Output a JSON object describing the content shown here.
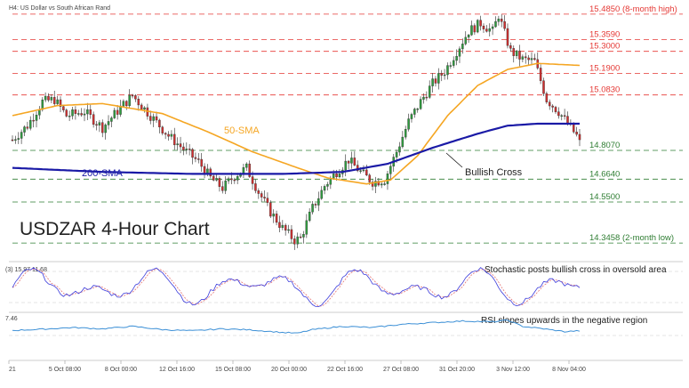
{
  "chart_data": {
    "type": "candlestick",
    "instrument_label": "H4: US Dollar vs South African Rand",
    "title": "USDZAR 4-Hour Chart",
    "ylim": [
      14.28,
      15.52
    ],
    "x_ticks": [
      "21",
      "5 Oct 08:00",
      "8 Oct 00:00",
      "12 Oct 16:00",
      "15 Oct 08:00",
      "20 Oct 00:00",
      "22 Oct 16:00",
      "27 Oct 08:00",
      "31 Oct 20:00",
      "3 Nov 12:00",
      "8 Nov 04:00"
    ],
    "levels": [
      {
        "value": 15.485,
        "label": "15.4850 (8-month high)",
        "color": "#e53935",
        "dash": "dashed"
      },
      {
        "value": 15.359,
        "label": "15.3590",
        "color": "#e53935",
        "dash": "dashed"
      },
      {
        "value": 15.3,
        "label": "15.3000",
        "color": "#e53935",
        "dash": "dashed"
      },
      {
        "value": 15.19,
        "label": "15.1900",
        "color": "#e53935",
        "dash": "dashed"
      },
      {
        "value": 15.083,
        "label": "15.0830",
        "color": "#e53935",
        "dash": "dashed"
      },
      {
        "value": 14.807,
        "label": "14.8070",
        "color": "#2e7d32",
        "dash": "dashed"
      },
      {
        "value": 14.664,
        "label": "14.6640",
        "color": "#2e7d32",
        "dash": "dashed"
      },
      {
        "value": 14.55,
        "label": "14.5500",
        "color": "#2e7d32",
        "dash": "dashed"
      },
      {
        "value": 14.3458,
        "label": "14.3458 (2-month low)",
        "color": "#2e7d32",
        "dash": "dashed"
      }
    ],
    "price_anchors": [
      [
        0,
        14.86
      ],
      [
        5,
        14.93
      ],
      [
        10,
        15.05
      ],
      [
        14,
        15.06
      ],
      [
        18,
        14.98
      ],
      [
        24,
        15.0
      ],
      [
        30,
        14.92
      ],
      [
        36,
        15.02
      ],
      [
        40,
        15.08
      ],
      [
        46,
        14.98
      ],
      [
        52,
        14.88
      ],
      [
        58,
        14.8
      ],
      [
        62,
        14.75
      ],
      [
        66,
        14.67
      ],
      [
        70,
        14.62
      ],
      [
        74,
        14.68
      ],
      [
        78,
        14.72
      ],
      [
        82,
        14.6
      ],
      [
        86,
        14.5
      ],
      [
        90,
        14.42
      ],
      [
        94,
        14.36
      ],
      [
        96,
        14.37
      ],
      [
        100,
        14.52
      ],
      [
        104,
        14.63
      ],
      [
        108,
        14.7
      ],
      [
        112,
        14.76
      ],
      [
        116,
        14.7
      ],
      [
        120,
        14.65
      ],
      [
        124,
        14.66
      ],
      [
        128,
        14.8
      ],
      [
        132,
        14.95
      ],
      [
        136,
        15.05
      ],
      [
        140,
        15.14
      ],
      [
        144,
        15.2
      ],
      [
        148,
        15.3
      ],
      [
        152,
        15.4
      ],
      [
        156,
        15.44
      ],
      [
        160,
        15.4
      ],
      [
        162,
        15.48
      ],
      [
        166,
        15.3
      ],
      [
        170,
        15.26
      ],
      [
        174,
        15.25
      ],
      [
        178,
        15.06
      ],
      [
        182,
        15.0
      ],
      [
        186,
        14.92
      ],
      [
        189,
        14.86
      ]
    ],
    "series": [
      {
        "name": "50-SMA",
        "color": "#f5a623",
        "values": [
          [
            0,
            14.98
          ],
          [
            15,
            15.03
          ],
          [
            30,
            15.04
          ],
          [
            50,
            14.99
          ],
          [
            65,
            14.9
          ],
          [
            80,
            14.8
          ],
          [
            95,
            14.72
          ],
          [
            105,
            14.67
          ],
          [
            118,
            14.64
          ],
          [
            126,
            14.66
          ],
          [
            135,
            14.78
          ],
          [
            145,
            14.98
          ],
          [
            155,
            15.13
          ],
          [
            165,
            15.21
          ],
          [
            175,
            15.24
          ],
          [
            189,
            15.23
          ]
        ]
      },
      {
        "name": "200-SMA",
        "color": "#1a1aa6",
        "values": [
          [
            0,
            14.72
          ],
          [
            30,
            14.7
          ],
          [
            60,
            14.69
          ],
          [
            90,
            14.69
          ],
          [
            110,
            14.7
          ],
          [
            125,
            14.74
          ],
          [
            140,
            14.82
          ],
          [
            155,
            14.89
          ],
          [
            165,
            14.93
          ],
          [
            175,
            14.94
          ],
          [
            189,
            14.94
          ]
        ]
      }
    ],
    "annotations": [
      {
        "text": "50-SMA",
        "color": "#f5a623"
      },
      {
        "text": "200-SMA",
        "color": "#1a1aa6"
      },
      {
        "text": "Bullish Cross",
        "color": "#222222"
      }
    ],
    "stochastic": {
      "header": "(3) 15.97 11.68",
      "note": "Stochastic posts bullish cross in oversold area",
      "k_color": "#3a3adb",
      "d_color": "#e57373"
    },
    "rsi": {
      "header": "7.46",
      "note": "RSI slopes upwards in the negative region",
      "color": "#3b8fd6",
      "values": [
        [
          0,
          45
        ],
        [
          10,
          48
        ],
        [
          20,
          52
        ],
        [
          30,
          49
        ],
        [
          40,
          55
        ],
        [
          50,
          47
        ],
        [
          60,
          44
        ],
        [
          70,
          49
        ],
        [
          80,
          46
        ],
        [
          90,
          40
        ],
        [
          95,
          38
        ],
        [
          100,
          47
        ],
        [
          110,
          55
        ],
        [
          120,
          52
        ],
        [
          130,
          60
        ],
        [
          140,
          64
        ],
        [
          150,
          68
        ],
        [
          160,
          66
        ],
        [
          165,
          70
        ],
        [
          170,
          55
        ],
        [
          178,
          48
        ],
        [
          184,
          42
        ],
        [
          189,
          44
        ]
      ]
    }
  }
}
